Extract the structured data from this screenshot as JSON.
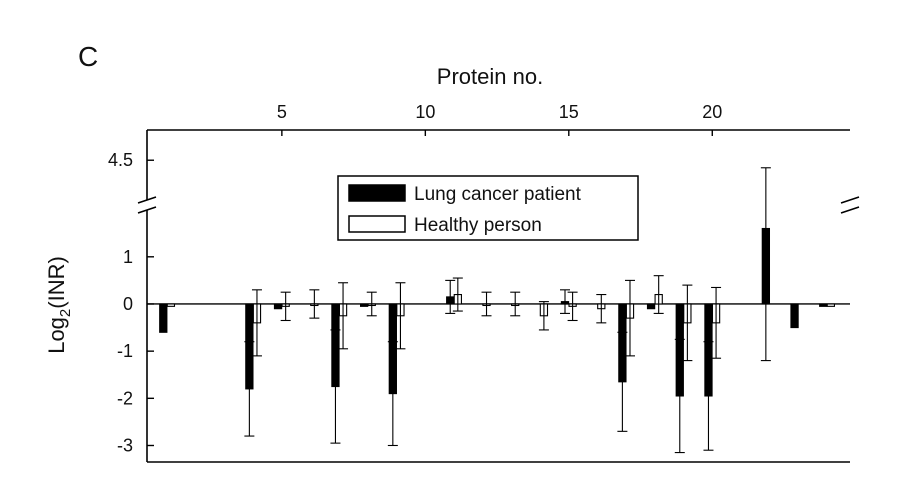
{
  "panel_label": "C",
  "chart_data": {
    "type": "bar",
    "title": "",
    "xlabel": "Protein no.",
    "ylabel_main": "Log",
    "ylabel_sub": "2",
    "ylabel_tail": "(INR)",
    "x_ticks": [
      5,
      10,
      15,
      20
    ],
    "x_tick_labels": [
      "5",
      "10",
      "15",
      "20"
    ],
    "xlim": [
      0.3,
      24.8
    ],
    "y_ticks": [
      -3,
      -2,
      -1,
      0,
      1
    ],
    "y_tick_labels": [
      "-3",
      "-2",
      "-1",
      "0",
      "1"
    ],
    "ylim_lower": [
      -3.35,
      1.95
    ],
    "ylim_upper": [
      4.0,
      4.9
    ],
    "y_upper_ticks": [
      4.5
    ],
    "y_upper_tick_labels": [
      "4.5"
    ],
    "axis_break": true,
    "categories": [
      1,
      2,
      3,
      4,
      5,
      6,
      7,
      8,
      9,
      10,
      11,
      12,
      13,
      14,
      15,
      16,
      17,
      18,
      19,
      20,
      21,
      22,
      23,
      24
    ],
    "series": [
      {
        "name": "Lung cancer patient",
        "fill": "#000000",
        "values": [
          -0.6,
          null,
          null,
          -1.8,
          -0.1,
          null,
          -1.75,
          -0.05,
          -1.9,
          null,
          0.15,
          null,
          null,
          null,
          0.05,
          null,
          -1.65,
          -0.1,
          -1.95,
          -1.95,
          null,
          1.6,
          -0.5,
          -0.05
        ],
        "errors": [
          null,
          null,
          null,
          1.0,
          null,
          null,
          1.2,
          null,
          1.1,
          null,
          0.35,
          null,
          null,
          null,
          0.25,
          null,
          1.05,
          null,
          1.2,
          1.15,
          null,
          2.8,
          null,
          null
        ]
      },
      {
        "name": "Healthy person",
        "fill": "#ffffff",
        "values": [
          -0.05,
          null,
          null,
          -0.4,
          -0.05,
          0.0,
          -0.25,
          0.0,
          -0.25,
          null,
          0.2,
          0.0,
          0.0,
          -0.25,
          -0.05,
          -0.1,
          -0.3,
          0.2,
          -0.4,
          -0.4,
          null,
          null,
          null,
          -0.05
        ],
        "errors": [
          null,
          null,
          null,
          0.7,
          0.3,
          0.3,
          0.7,
          0.25,
          0.7,
          null,
          0.35,
          0.25,
          0.25,
          0.3,
          0.3,
          0.3,
          0.8,
          0.4,
          0.8,
          0.75,
          null,
          null,
          null,
          null
        ]
      }
    ],
    "legend": {
      "position": "top-center",
      "entries": [
        "Lung cancer patient",
        "Healthy person"
      ]
    },
    "grid": false
  }
}
